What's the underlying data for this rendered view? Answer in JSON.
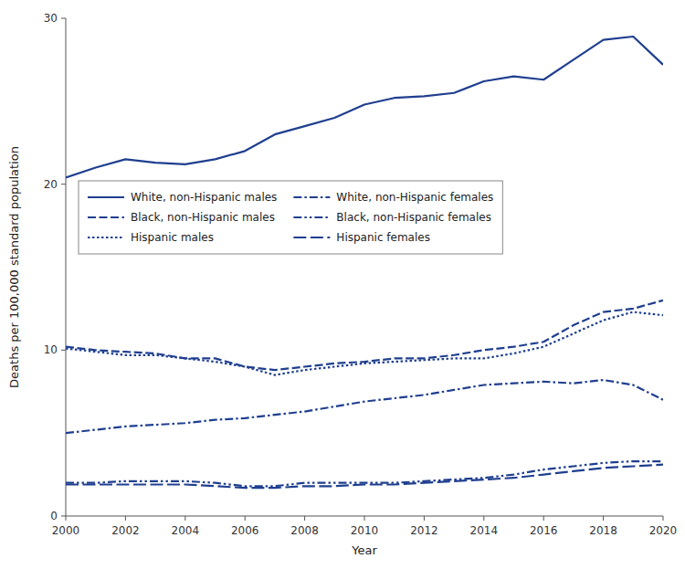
{
  "chart_data": {
    "type": "line",
    "x": [
      2000,
      2001,
      2002,
      2003,
      2004,
      2005,
      2006,
      2007,
      2008,
      2009,
      2010,
      2011,
      2012,
      2013,
      2014,
      2015,
      2016,
      2017,
      2018,
      2019,
      2020
    ],
    "xlabel": "Year",
    "ylabel": "Deaths per 100,000 standard population",
    "xlim": [
      2000,
      2020
    ],
    "xticks": [
      2000,
      2002,
      2004,
      2006,
      2008,
      2010,
      2012,
      2014,
      2016,
      2018,
      2020
    ],
    "ylim": [
      0,
      30
    ],
    "yticks": [
      0,
      10,
      20,
      30
    ],
    "grid": false,
    "legend": "upper left",
    "series": [
      {
        "name": "White, non-Hispanic males",
        "color": "#1f3f8f",
        "line_style": "solid",
        "values": [
          20.4,
          21.0,
          21.5,
          21.3,
          21.2,
          21.5,
          22.0,
          23.0,
          23.5,
          24.0,
          24.8,
          25.2,
          25.3,
          25.5,
          26.2,
          26.5,
          26.3,
          27.5,
          28.7,
          28.9,
          27.2
        ]
      },
      {
        "name": "Black, non-Hispanic males",
        "color": "#1f3f8f",
        "line_style": "dashed",
        "values": [
          10.2,
          10.0,
          9.9,
          9.8,
          9.5,
          9.5,
          9.0,
          8.8,
          9.0,
          9.2,
          9.3,
          9.5,
          9.5,
          9.7,
          10.0,
          10.2,
          10.5,
          11.5,
          12.3,
          12.5,
          13.0
        ]
      },
      {
        "name": "Hispanic males",
        "color": "#1f3f8f",
        "line_style": "dotted",
        "values": [
          10.1,
          9.9,
          9.7,
          9.7,
          9.5,
          9.3,
          9.0,
          8.5,
          8.8,
          9.0,
          9.2,
          9.3,
          9.4,
          9.5,
          9.5,
          9.8,
          10.2,
          11.0,
          11.8,
          12.3,
          12.1
        ]
      },
      {
        "name": "White, non-Hispanic females",
        "color": "#1f3f8f",
        "line_style": "dash_dot",
        "values": [
          5.0,
          5.2,
          5.4,
          5.5,
          5.6,
          5.8,
          5.9,
          6.1,
          6.3,
          6.6,
          6.9,
          7.1,
          7.3,
          7.6,
          7.9,
          8.0,
          8.1,
          8.0,
          8.2,
          7.9,
          7.0
        ]
      },
      {
        "name": "Black, non-Hispanic females",
        "color": "#1f3f8f",
        "line_style": "dash_dot_dot",
        "values": [
          2.0,
          2.0,
          2.1,
          2.1,
          2.1,
          2.0,
          1.8,
          1.8,
          2.0,
          2.0,
          2.0,
          2.0,
          2.1,
          2.2,
          2.3,
          2.5,
          2.8,
          3.0,
          3.2,
          3.3,
          3.3
        ]
      },
      {
        "name": "Hispanic females",
        "color": "#1f3f8f",
        "line_style": "long_dash",
        "values": [
          1.9,
          1.9,
          1.9,
          1.9,
          1.9,
          1.8,
          1.7,
          1.7,
          1.8,
          1.8,
          1.9,
          1.9,
          2.0,
          2.1,
          2.2,
          2.3,
          2.5,
          2.7,
          2.9,
          3.0,
          3.1
        ]
      }
    ]
  }
}
